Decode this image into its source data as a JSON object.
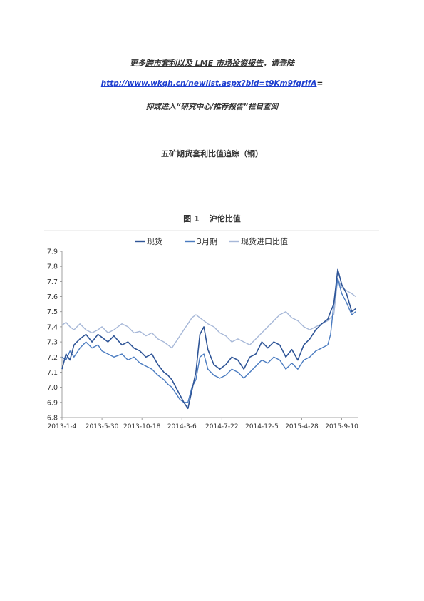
{
  "header": {
    "line1_prefix": "更多",
    "line1_link": "跨市套利以及 LME 市场投资报告",
    "line1_suffix": "，请登陆",
    "url": "http://www.wkqh.cn/newlist.aspx?bid=t9Km9fqrifA",
    "url_suffix": "=",
    "line3": "抑或进入“研究中心/推荐报告”栏目查阅"
  },
  "doc_title": "五矿期货套利比值追踪（铜）",
  "figure": {
    "number": "图 1",
    "caption": "沪伦比值"
  },
  "colors": {
    "spot": "#2f5597",
    "month3": "#4a7bc0",
    "import": "#a7b8d8",
    "axis": "#888888",
    "grid": "#d0d0d0"
  },
  "chart_data": {
    "type": "line",
    "title": "",
    "xlabel": "",
    "ylabel": "",
    "ylim": [
      6.8,
      7.9
    ],
    "yticks": [
      "6.8",
      "6.9",
      "7.0",
      "7.1",
      "7.2",
      "7.3",
      "7.4",
      "7.5",
      "7.6",
      "7.7",
      "7.8",
      "7.9"
    ],
    "x_tick_labels": [
      "2013-1-4",
      "2013-5-30",
      "2013-10-18",
      "2014-3-6",
      "2014-7-22",
      "2014-12-5",
      "2015-4-28",
      "2015-9-10"
    ],
    "x_tick_positions": [
      0,
      100,
      200,
      300,
      400,
      500,
      600,
      700
    ],
    "x_max": 740,
    "legend_position": "top",
    "series": [
      {
        "name": "现货",
        "x": [
          0,
          10,
          20,
          30,
          45,
          60,
          75,
          90,
          100,
          115,
          130,
          150,
          165,
          180,
          195,
          210,
          225,
          240,
          255,
          265,
          275,
          285,
          295,
          305,
          315,
          325,
          335,
          345,
          355,
          365,
          380,
          395,
          410,
          425,
          440,
          455,
          470,
          485,
          500,
          515,
          530,
          545,
          560,
          575,
          590,
          605,
          620,
          635,
          650,
          665,
          672,
          680,
          690,
          700,
          712,
          725,
          735
        ],
        "values": [
          7.12,
          7.22,
          7.18,
          7.28,
          7.32,
          7.35,
          7.3,
          7.35,
          7.33,
          7.3,
          7.34,
          7.28,
          7.3,
          7.26,
          7.24,
          7.2,
          7.22,
          7.15,
          7.1,
          7.08,
          7.05,
          7.0,
          6.95,
          6.9,
          6.86,
          6.98,
          7.1,
          7.35,
          7.4,
          7.25,
          7.15,
          7.12,
          7.15,
          7.2,
          7.18,
          7.12,
          7.2,
          7.22,
          7.3,
          7.26,
          7.3,
          7.28,
          7.2,
          7.25,
          7.18,
          7.28,
          7.32,
          7.38,
          7.42,
          7.45,
          7.5,
          7.55,
          7.78,
          7.68,
          7.62,
          7.5,
          7.52
        ]
      },
      {
        "name": "3月期",
        "x": [
          0,
          10,
          20,
          30,
          45,
          60,
          75,
          90,
          100,
          115,
          130,
          150,
          165,
          180,
          195,
          210,
          225,
          240,
          255,
          265,
          275,
          285,
          295,
          305,
          315,
          325,
          335,
          345,
          355,
          365,
          380,
          395,
          410,
          425,
          440,
          455,
          470,
          485,
          500,
          515,
          530,
          545,
          560,
          575,
          590,
          605,
          620,
          635,
          650,
          665,
          672,
          680,
          690,
          700,
          712,
          725,
          735
        ],
        "values": [
          7.2,
          7.18,
          7.24,
          7.2,
          7.26,
          7.3,
          7.26,
          7.28,
          7.24,
          7.22,
          7.2,
          7.22,
          7.18,
          7.2,
          7.16,
          7.14,
          7.12,
          7.08,
          7.05,
          7.02,
          7.0,
          6.96,
          6.92,
          6.9,
          6.9,
          7.0,
          7.05,
          7.2,
          7.22,
          7.12,
          7.08,
          7.06,
          7.08,
          7.12,
          7.1,
          7.06,
          7.1,
          7.14,
          7.18,
          7.16,
          7.2,
          7.18,
          7.12,
          7.16,
          7.12,
          7.18,
          7.2,
          7.24,
          7.26,
          7.28,
          7.35,
          7.55,
          7.72,
          7.62,
          7.56,
          7.48,
          7.5
        ]
      },
      {
        "name": "现货进口比值",
        "x": [
          0,
          10,
          20,
          30,
          45,
          60,
          75,
          90,
          100,
          115,
          130,
          150,
          165,
          180,
          195,
          210,
          225,
          240,
          255,
          265,
          275,
          285,
          295,
          305,
          315,
          325,
          335,
          345,
          355,
          365,
          380,
          395,
          410,
          425,
          440,
          455,
          470,
          485,
          500,
          515,
          530,
          545,
          560,
          575,
          590,
          605,
          620,
          635,
          650,
          665,
          672,
          680,
          690,
          700,
          712,
          725,
          735
        ],
        "values": [
          7.41,
          7.43,
          7.4,
          7.38,
          7.42,
          7.38,
          7.36,
          7.38,
          7.4,
          7.36,
          7.38,
          7.42,
          7.4,
          7.36,
          7.37,
          7.34,
          7.36,
          7.32,
          7.3,
          7.28,
          7.26,
          7.3,
          7.34,
          7.38,
          7.42,
          7.46,
          7.48,
          7.46,
          7.44,
          7.42,
          7.4,
          7.36,
          7.34,
          7.3,
          7.32,
          7.3,
          7.28,
          7.32,
          7.36,
          7.4,
          7.44,
          7.48,
          7.5,
          7.46,
          7.44,
          7.4,
          7.38,
          7.4,
          7.42,
          7.44,
          7.46,
          7.48,
          7.72,
          7.66,
          7.64,
          7.62,
          7.6
        ]
      }
    ]
  }
}
